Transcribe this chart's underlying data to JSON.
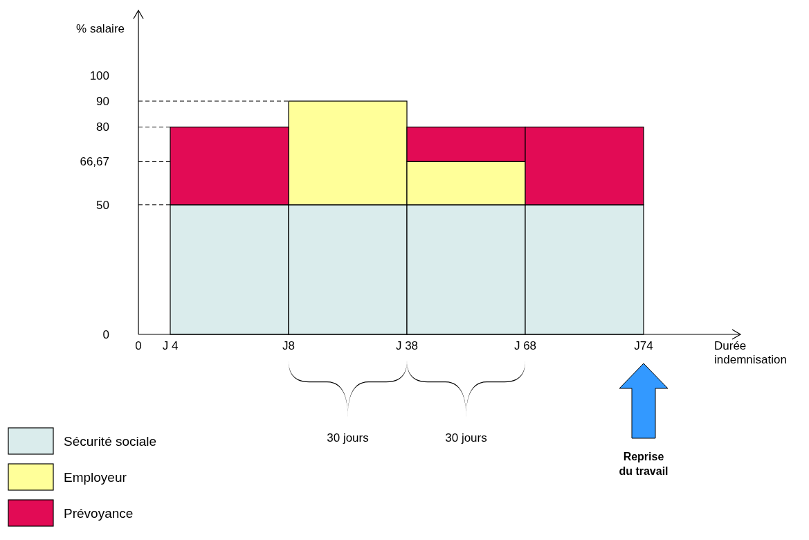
{
  "chart_data": {
    "type": "bar",
    "stacked": true,
    "ylabel": "% salaire",
    "xlabel": "Durée indemnisation",
    "categories": [
      null,
      null,
      null,
      null
    ],
    "series": [
      {
        "name": "Sécurité sociale",
        "color": "#daecec",
        "values": [
          50,
          50,
          50,
          50
        ]
      },
      {
        "name": "Employeur",
        "color": "#ffff99",
        "values": [
          0,
          40,
          16.67,
          0
        ]
      },
      {
        "name": "Prévoyance",
        "color": "#e20b55",
        "values": [
          30,
          0,
          13.33,
          30
        ]
      }
    ],
    "ylim": [
      0,
      125
    ],
    "yticks": [
      0,
      50,
      {
        "value": 66.67,
        "label": "66,67"
      },
      80,
      90,
      100
    ],
    "annotations": [
      "0",
      "J 4",
      "J8",
      "J 38",
      "J 68",
      "J74",
      "30 jours",
      "30 jours",
      "Reprise du travail"
    ],
    "legend": "bottom left"
  }
}
